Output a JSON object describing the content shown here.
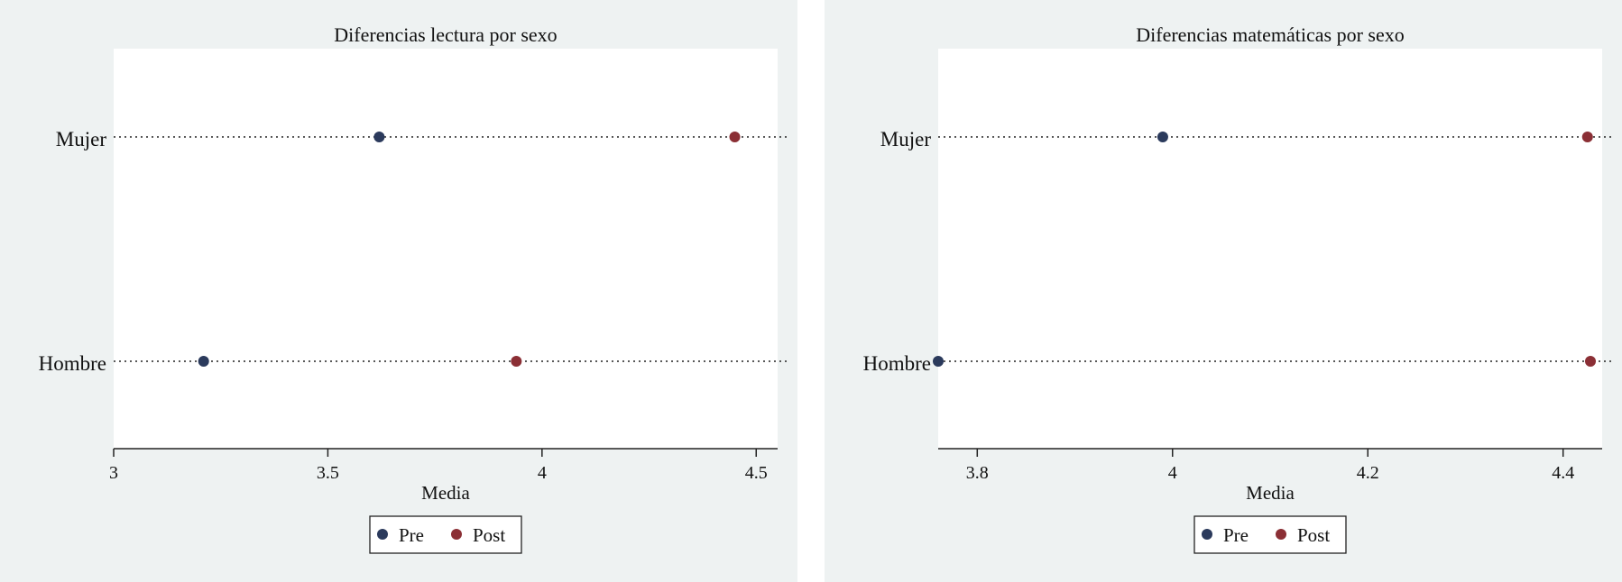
{
  "chart_data": [
    {
      "type": "dot",
      "title": "Diferencias lectura por sexo",
      "xlabel": "Media",
      "ylabel": "",
      "categories": [
        "Mujer",
        "Hombre"
      ],
      "xlim": [
        3,
        4.55
      ],
      "xticks": [
        3,
        3.5,
        4,
        4.5
      ],
      "xtick_labels": [
        "3",
        "3.5",
        "4",
        "4.5"
      ],
      "series": [
        {
          "name": "Pre",
          "color": "#2b3a5c",
          "values": [
            3.62,
            3.21
          ]
        },
        {
          "name": "Post",
          "color": "#8b2f35",
          "values": [
            4.45,
            3.94
          ]
        }
      ],
      "grid": false,
      "legend_position": "bottom"
    },
    {
      "type": "dot",
      "title": "Diferencias matemáticas por sexo",
      "xlabel": "Media",
      "ylabel": "",
      "categories": [
        "Mujer",
        "Hombre"
      ],
      "xlim": [
        3.76,
        4.44
      ],
      "xticks": [
        3.8,
        4,
        4.2,
        4.4
      ],
      "xtick_labels": [
        "3.8",
        "4",
        "4.2",
        "4.4"
      ],
      "series": [
        {
          "name": "Pre",
          "color": "#2b3a5c",
          "values": [
            3.99,
            3.76
          ]
        },
        {
          "name": "Post",
          "color": "#8b2f35",
          "values": [
            4.425,
            4.428
          ]
        }
      ],
      "grid": false,
      "legend_position": "bottom"
    }
  ]
}
